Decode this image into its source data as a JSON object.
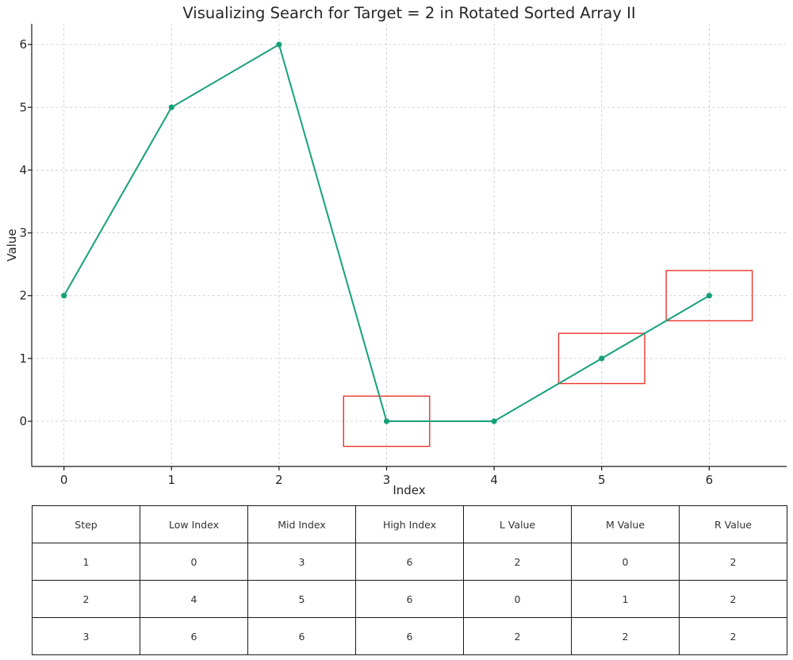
{
  "chart_data": {
    "type": "line",
    "title": "Visualizing Search for Target = 2 in Rotated Sorted Array II",
    "xlabel": "Index",
    "ylabel": "Value",
    "x": [
      0,
      1,
      2,
      3,
      4,
      5,
      6
    ],
    "series": [
      {
        "values": [
          2,
          5,
          6,
          0,
          0,
          1,
          2
        ],
        "color": "#17a07a"
      }
    ],
    "xlim": [
      -0.3,
      6.72
    ],
    "ylim": [
      -0.72,
      6.33
    ],
    "xticks": [
      0,
      1,
      2,
      3,
      4,
      5,
      6
    ],
    "yticks": [
      0,
      1,
      2,
      3,
      4,
      5,
      6
    ],
    "grid": true,
    "highlighted_indices": [
      3,
      5,
      6
    ],
    "highlight_color": "#e8342c"
  },
  "table": {
    "headers": [
      "Step",
      "Low Index",
      "Mid Index",
      "High Index",
      "L Value",
      "M Value",
      "R Value"
    ],
    "rows": [
      [
        "1",
        "0",
        "3",
        "6",
        "2",
        "0",
        "2"
      ],
      [
        "2",
        "4",
        "5",
        "6",
        "0",
        "1",
        "2"
      ],
      [
        "3",
        "6",
        "6",
        "6",
        "2",
        "2",
        "2"
      ]
    ]
  }
}
